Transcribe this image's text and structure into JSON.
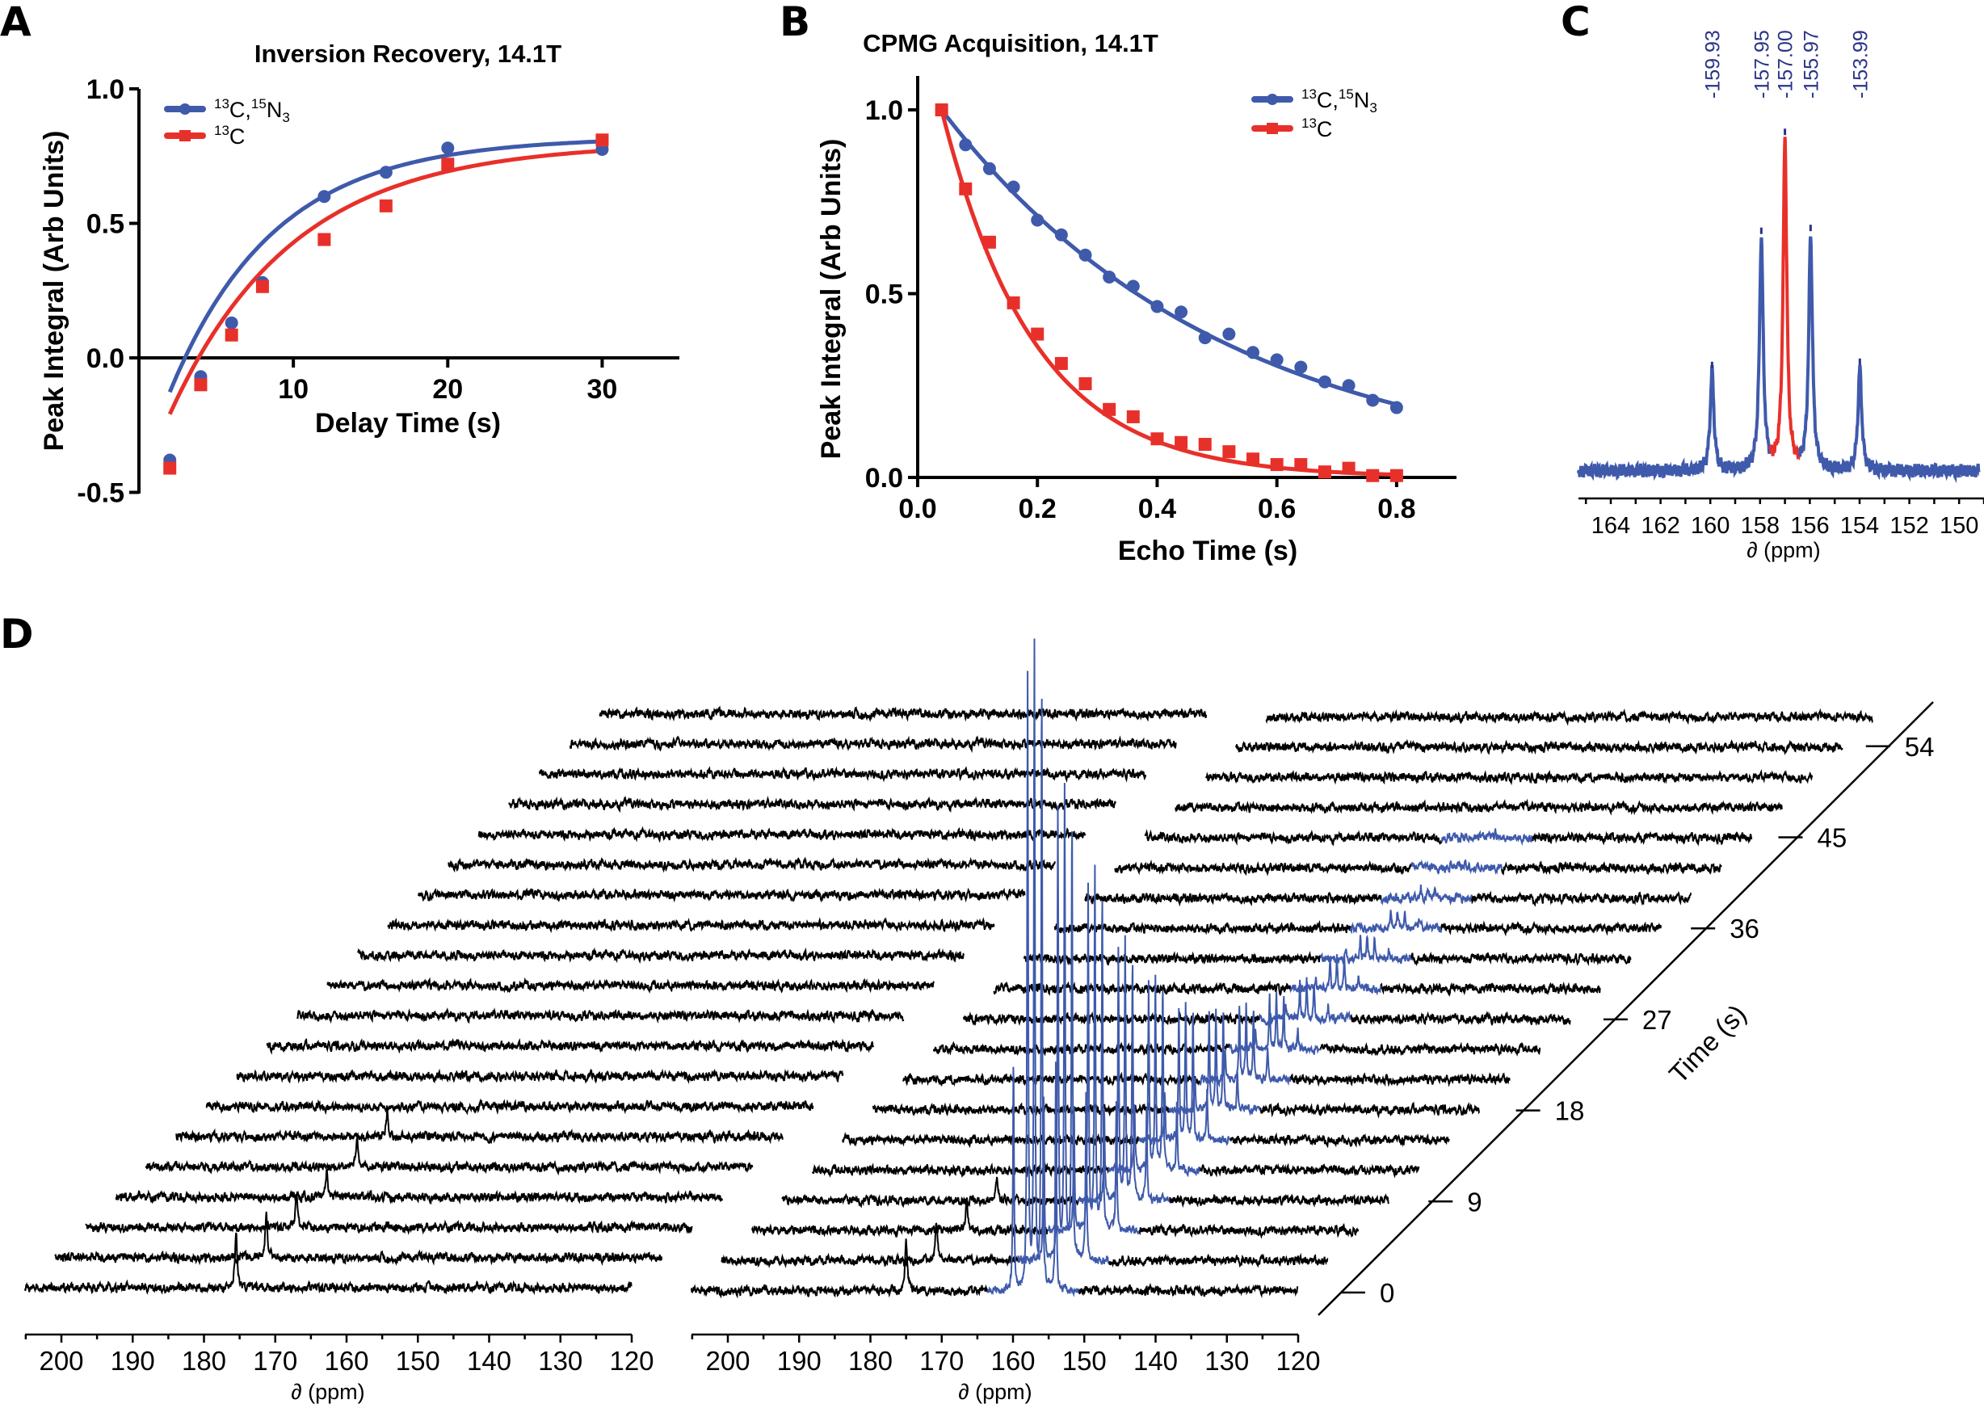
{
  "colors": {
    "blue": "#3f5aab",
    "red": "#e8302a",
    "navy": "#2a3486",
    "black": "#000000"
  },
  "chart_data": [
    {
      "id": "A",
      "panel_letter": "A",
      "type": "scatter",
      "title": "Inversion Recovery, 14.1T",
      "xlabel": "Delay Time (s)",
      "ylabel": "Peak Integral (Arb Units)",
      "xlim": [
        0,
        35
      ],
      "ylim": [
        -0.5,
        1.0
      ],
      "xticks": [
        10,
        20,
        30
      ],
      "xtick_labels": [
        "10",
        "20",
        "30"
      ],
      "yticks": [
        -0.5,
        0.0,
        0.5,
        1.0
      ],
      "ytick_labels": [
        "-0.5",
        "0.0",
        "0.5",
        "1.0"
      ],
      "legend_position": "top-left",
      "fit": "exponential recovery",
      "series": [
        {
          "name": "13C,15N3",
          "label_parts": [
            [
              "13",
              "sup"
            ],
            [
              "C,",
              "n"
            ],
            [
              "15",
              "sup"
            ],
            [
              "N",
              "n"
            ],
            [
              "3",
              "sub"
            ]
          ],
          "color_key": "blue",
          "marker": "circle",
          "x": [
            2,
            4,
            6,
            8,
            12,
            16,
            20,
            30
          ],
          "y": [
            -0.38,
            -0.07,
            0.13,
            0.28,
            0.6,
            0.69,
            0.78,
            0.775
          ],
          "fit_params": {
            "M0": 0.82,
            "T1": 6.8,
            "inversion": 1.55
          }
        },
        {
          "name": "13C",
          "label_parts": [
            [
              "13",
              "sup"
            ],
            [
              "C",
              "n"
            ]
          ],
          "color_key": "red",
          "marker": "square",
          "x": [
            2,
            4,
            6,
            8,
            12,
            16,
            20,
            30
          ],
          "y": [
            -0.41,
            -0.1,
            0.085,
            0.265,
            0.44,
            0.565,
            0.72,
            0.81
          ],
          "fit_params": {
            "M0": 0.8,
            "T1": 8.0,
            "inversion": 1.62
          }
        }
      ]
    },
    {
      "id": "B",
      "panel_letter": "B",
      "type": "scatter",
      "title": "CPMG Acquisition, 14.1T",
      "xlabel": "Echo Time (s)",
      "ylabel": "Peak Integral (Arb Units)",
      "xlim": [
        0,
        0.9
      ],
      "ylim": [
        0,
        1.1
      ],
      "xticks": [
        0.0,
        0.2,
        0.4,
        0.6,
        0.8
      ],
      "xtick_labels": [
        "0.0",
        "0.2",
        "0.4",
        "0.6",
        "0.8"
      ],
      "yticks": [
        0.0,
        0.5,
        1.0
      ],
      "ytick_labels": [
        "0.0",
        "0.5",
        "1.0"
      ],
      "legend_position": "top-right",
      "fit": "exponential decay",
      "series": [
        {
          "name": "13C,15N3",
          "label_parts": [
            [
              "13",
              "sup"
            ],
            [
              "C,",
              "n"
            ],
            [
              "15",
              "sup"
            ],
            [
              "N",
              "n"
            ],
            [
              "3",
              "sub"
            ]
          ],
          "color_key": "blue",
          "marker": "circle",
          "x": [
            0.04,
            0.08,
            0.12,
            0.16,
            0.2,
            0.24,
            0.28,
            0.32,
            0.36,
            0.4,
            0.44,
            0.48,
            0.52,
            0.56,
            0.6,
            0.64,
            0.68,
            0.72,
            0.76,
            0.8
          ],
          "y": [
            1.0,
            0.905,
            0.84,
            0.79,
            0.7,
            0.66,
            0.605,
            0.545,
            0.52,
            0.465,
            0.45,
            0.38,
            0.39,
            0.34,
            0.32,
            0.3,
            0.26,
            0.25,
            0.21,
            0.19
          ],
          "fit_params": {
            "T2": 0.47
          }
        },
        {
          "name": "13C",
          "label_parts": [
            [
              "13",
              "sup"
            ],
            [
              "C",
              "n"
            ]
          ],
          "color_key": "red",
          "marker": "square",
          "x": [
            0.04,
            0.08,
            0.12,
            0.16,
            0.2,
            0.24,
            0.28,
            0.32,
            0.36,
            0.4,
            0.44,
            0.48,
            0.52,
            0.56,
            0.6,
            0.64,
            0.68,
            0.72,
            0.76,
            0.8
          ],
          "y": [
            1.0,
            0.785,
            0.64,
            0.475,
            0.39,
            0.31,
            0.255,
            0.185,
            0.165,
            0.105,
            0.095,
            0.09,
            0.07,
            0.05,
            0.035,
            0.035,
            0.015,
            0.025,
            0.005,
            0.005
          ],
          "fit_params": {
            "T2": 0.155
          }
        }
      ]
    },
    {
      "id": "C",
      "panel_letter": "C",
      "type": "line",
      "title": "",
      "xlabel": "∂ (ppm)",
      "ylabel": "",
      "xlim": [
        165.3,
        149.2
      ],
      "xticks": [
        164,
        162,
        160,
        158,
        156,
        154,
        152,
        150
      ],
      "xtick_labels": [
        "164",
        "162",
        "160",
        "158",
        "156",
        "154",
        "152",
        "150"
      ],
      "minor_tick_step": 1,
      "peaks": [
        {
          "ppm": 159.93,
          "label": "-159.93",
          "relative_height": 0.3,
          "color_key": "blue"
        },
        {
          "ppm": 157.95,
          "label": "-157.95",
          "relative_height": 0.7,
          "color_key": "blue"
        },
        {
          "ppm": 157.0,
          "label": "-157.00",
          "relative_height": 1.0,
          "color_key": "red"
        },
        {
          "ppm": 155.97,
          "label": "-155.97",
          "relative_height": 0.71,
          "color_key": "blue"
        },
        {
          "ppm": 153.99,
          "label": "-153.99",
          "relative_height": 0.31,
          "color_key": "blue"
        }
      ],
      "highlight_range_ppm": [
        157.6,
        156.4
      ]
    },
    {
      "id": "D",
      "panel_letter": "D",
      "type": "line",
      "title": "",
      "description": "Stacked time series of 13C spectra (waterfall)",
      "xlabel": "∂ (ppm)",
      "time_axis_label": "Time (s)",
      "xlim": [
        205.1,
        120
      ],
      "xticks": [
        200,
        190,
        180,
        170,
        160,
        150,
        140,
        130,
        120
      ],
      "xtick_labels": [
        "200",
        "190",
        "180",
        "170",
        "160",
        "150",
        "140",
        "130",
        "120"
      ],
      "time_ticks": [
        0,
        9,
        18,
        27,
        36,
        45,
        54
      ],
      "time_tick_labels": [
        "0",
        "9",
        "18",
        "27",
        "36",
        "45",
        "54"
      ],
      "time_step_s": 3,
      "n_spectra": 20,
      "subplots": [
        {
          "name": "left",
          "peaks": [
            {
              "ppm": 175.5,
              "color_key": "black",
              "heights": [
                1.0,
                0.8,
                0.6,
                0.52,
                0.46,
                0.41,
                0.1,
                0,
                0,
                0,
                0,
                0,
                0,
                0,
                0,
                0,
                0,
                0,
                0,
                0
              ]
            }
          ]
        },
        {
          "name": "right",
          "peaks": [
            {
              "ppm": 175.0,
              "color_key": "black",
              "heights": [
                1.0,
                0.78,
                0.56,
                0.45,
                0,
                0,
                0,
                0,
                0,
                0,
                0,
                0,
                0,
                0,
                0,
                0,
                0,
                0,
                0,
                0
              ]
            }
          ],
          "multiplet": {
            "color_key": "blue",
            "center_ppm": 157.0,
            "line_ppm": [
              159.93,
              157.95,
              157.0,
              155.97,
              153.99
            ],
            "line_weights": [
              0.38,
              1.0,
              1.05,
              1.0,
              0.38
            ],
            "amplitude_per_spectrum": [
              795,
              581,
              443,
              321,
              237,
              171,
              127,
              95,
              70,
              50,
              38,
              28,
              20,
              14,
              9,
              6,
              0,
              0,
              0,
              0
            ]
          }
        }
      ]
    }
  ]
}
